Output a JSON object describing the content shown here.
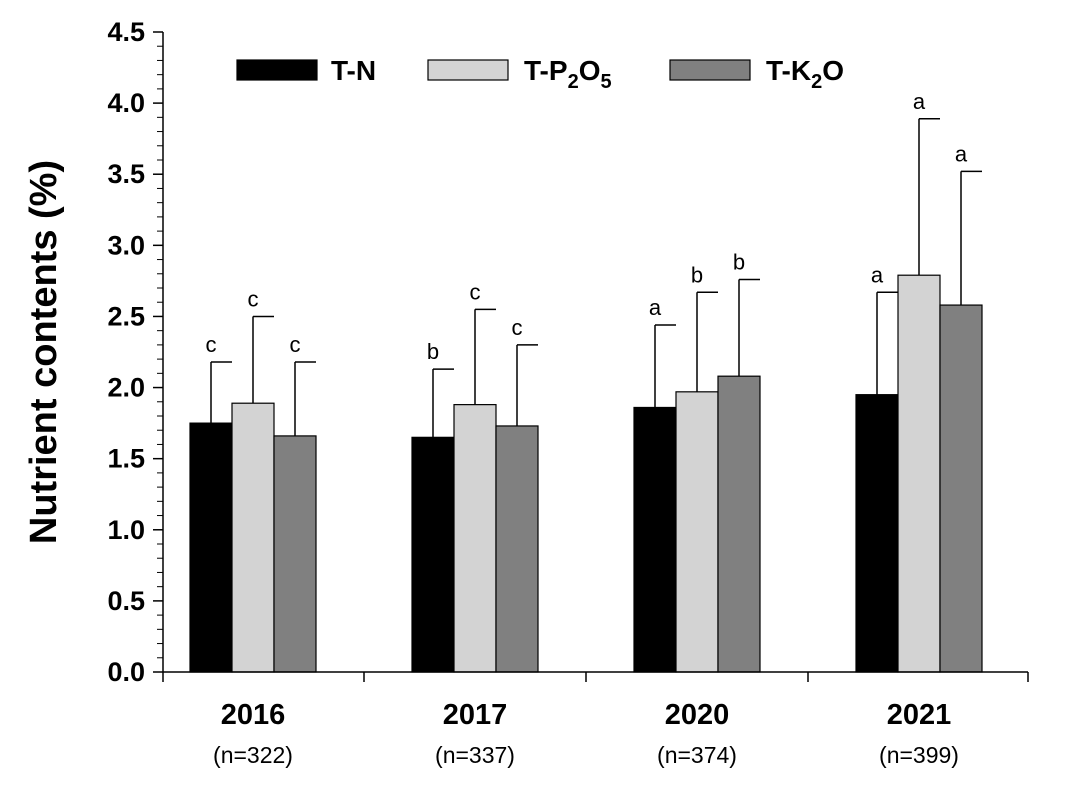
{
  "chart_data": {
    "type": "bar",
    "title": "",
    "xlabel": "",
    "ylabel": "Nutrient contents (%)",
    "ylim": [
      0,
      4.5
    ],
    "y_ticks": [
      "0.0",
      "0.5",
      "1.0",
      "1.5",
      "2.0",
      "2.5",
      "3.0",
      "3.5",
      "4.0",
      "4.5"
    ],
    "y_tick_values": [
      0,
      0.5,
      1.0,
      1.5,
      2.0,
      2.5,
      3.0,
      3.5,
      4.0,
      4.5
    ],
    "categories": [
      "2016",
      "2017",
      "2020",
      "2021"
    ],
    "category_sublabels": [
      "(n=322)",
      "(n=337)",
      "(n=374)",
      "(n=399)"
    ],
    "legend_position": "top-left",
    "series": [
      {
        "name": "T-N",
        "name_base": "T-N",
        "name_sub": "",
        "name_tail": "",
        "color": "#000000",
        "values": [
          1.75,
          1.65,
          1.86,
          1.95
        ],
        "error_upper": [
          2.18,
          2.13,
          2.44,
          2.67
        ],
        "letters": [
          "c",
          "b",
          "a",
          "a"
        ]
      },
      {
        "name": "T-P2O5",
        "name_base": "T-P",
        "name_sub": "2",
        "name_mid": "O",
        "name_sub2": "5",
        "color": "#d3d3d3",
        "values": [
          1.89,
          1.88,
          1.97,
          2.79
        ],
        "error_upper": [
          2.5,
          2.55,
          2.67,
          3.89
        ],
        "letters": [
          "c",
          "c",
          "b",
          "a"
        ]
      },
      {
        "name": "T-K2O",
        "name_base": "T-K",
        "name_sub": "2",
        "name_mid": "O",
        "name_sub2": "",
        "color": "#808080",
        "values": [
          1.66,
          1.73,
          2.08,
          2.58
        ],
        "error_upper": [
          2.18,
          2.3,
          2.76,
          3.52
        ],
        "letters": [
          "c",
          "c",
          "b",
          "a"
        ]
      }
    ]
  }
}
